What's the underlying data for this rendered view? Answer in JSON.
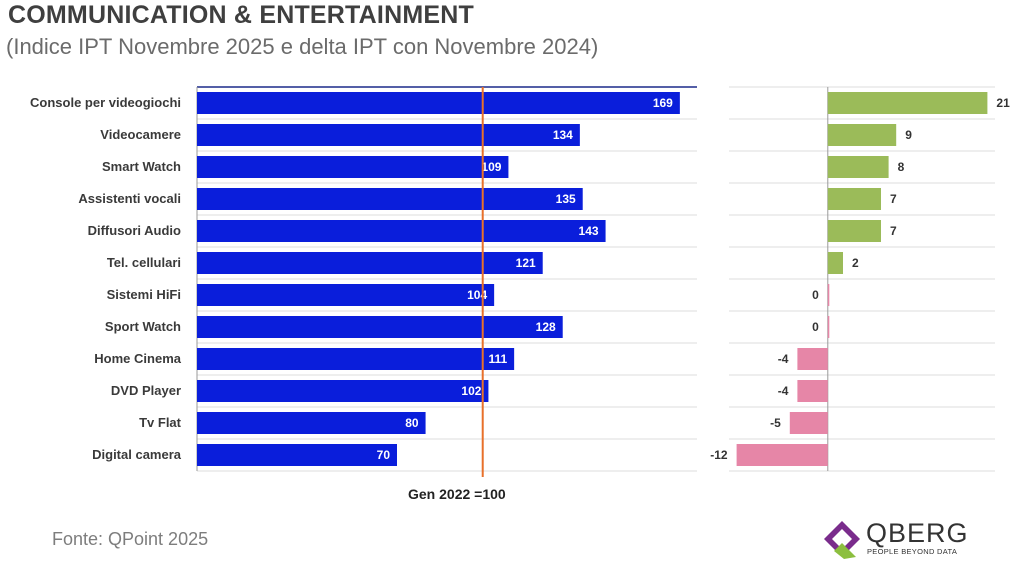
{
  "header": {
    "title": "COMMUNICATION & ENTERTAINMENT",
    "subtitle": "(Indice IPT Novembre 2025 e delta IPT con Novembre 2024)"
  },
  "reference_note": "Gen 2022 =100",
  "source": "Fonte: QPoint 2025",
  "logo": {
    "name": "QBERG",
    "tagline": "PEOPLE BEYOND DATA"
  },
  "colors": {
    "index_bar": "#0a1edb",
    "reference_line": "#e8702a",
    "delta_positive": "#9bbb59",
    "delta_negative": "#e686a7"
  },
  "chart_data": [
    {
      "type": "bar",
      "orientation": "horizontal",
      "categories": [
        "Console per videogiochi",
        "Videocamere",
        "Smart Watch",
        "Assistenti vocali",
        "Diffusori Audio",
        "Tel. cellulari",
        "Sistemi HiFi",
        "Sport Watch",
        "Home Cinema",
        "DVD Player",
        "Tv Flat",
        "Digital camera"
      ],
      "values": [
        169,
        134,
        109,
        135,
        143,
        121,
        104,
        128,
        111,
        102,
        80,
        70
      ],
      "reference_value": 100,
      "xlim": [
        0,
        175
      ],
      "data_labels": true,
      "grid": true
    },
    {
      "type": "bar",
      "orientation": "horizontal",
      "categories": [
        "Console per videogiochi",
        "Videocamere",
        "Smart Watch",
        "Assistenti vocali",
        "Diffusori Audio",
        "Tel. cellulari",
        "Sistemi HiFi",
        "Sport Watch",
        "Home Cinema",
        "DVD Player",
        "Tv Flat",
        "Digital camera"
      ],
      "values": [
        21,
        9,
        8,
        7,
        7,
        2,
        0,
        0,
        -4,
        -4,
        -5,
        -12
      ],
      "xlim": [
        -13,
        22
      ],
      "data_labels": true,
      "grid": true
    }
  ]
}
